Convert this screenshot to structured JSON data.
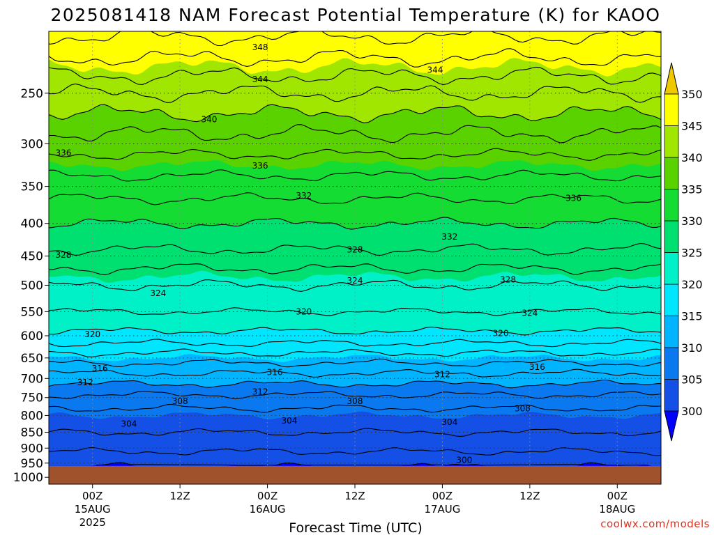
{
  "chart_data": {
    "type": "contour",
    "title": "2025081418 NAM Forecast Potential Temperature (K) for KAOO",
    "xlabel": "Forecast Time (UTC)",
    "ylabel": "",
    "credit": "coolwx.com/models",
    "y_axis": {
      "scale": "log-pressure",
      "reversed": true,
      "ticks": [
        250,
        300,
        350,
        400,
        450,
        500,
        550,
        600,
        650,
        700,
        750,
        800,
        850,
        900,
        950,
        1000
      ],
      "ylim": [
        200,
        1025
      ]
    },
    "x_axis": {
      "start": "2025-08-14T18",
      "end": "2025-08-18T06",
      "ticks": [
        {
          "time": "2025-08-15T00",
          "l1": "00Z",
          "l2": "15AUG",
          "l3": "2025"
        },
        {
          "time": "2025-08-15T12",
          "l1": "12Z",
          "l2": "",
          "l3": ""
        },
        {
          "time": "2025-08-16T00",
          "l1": "00Z",
          "l2": "16AUG",
          "l3": ""
        },
        {
          "time": "2025-08-16T12",
          "l1": "12Z",
          "l2": "",
          "l3": ""
        },
        {
          "time": "2025-08-17T00",
          "l1": "00Z",
          "l2": "17AUG",
          "l3": ""
        },
        {
          "time": "2025-08-17T12",
          "l1": "12Z",
          "l2": "",
          "l3": ""
        },
        {
          "time": "2025-08-18T00",
          "l1": "00Z",
          "l2": "18AUG",
          "l3": ""
        }
      ]
    },
    "surface_pressure": 960,
    "colorbar": {
      "levels": [
        300,
        305,
        310,
        315,
        320,
        325,
        330,
        335,
        340,
        345,
        350
      ],
      "labels": [
        "300",
        "305",
        "310",
        "315",
        "320",
        "325",
        "330",
        "335",
        "340",
        "345",
        "350"
      ],
      "colors": [
        "#0000ff",
        "#1450e6",
        "#0a78ee",
        "#00b4ff",
        "#00e6ff",
        "#00f0c8",
        "#00e070",
        "#14dc32",
        "#5ad200",
        "#a0e600",
        "#ffff00",
        "#f0c800"
      ]
    },
    "contour_interval": 2,
    "bands": [
      {
        "pressure": 945,
        "theta": 300.5
      },
      {
        "pressure": 900,
        "theta": 302.5
      },
      {
        "pressure": 850,
        "theta": 304.0
      },
      {
        "pressure": 800,
        "theta": 305.0
      },
      {
        "pressure": 750,
        "theta": 307.5
      },
      {
        "pressure": 700,
        "theta": 311.0
      },
      {
        "pressure": 650,
        "theta": 315.0
      },
      {
        "pressure": 600,
        "theta": 319.5
      },
      {
        "pressure": 550,
        "theta": 322.0
      },
      {
        "pressure": 500,
        "theta": 324.0
      },
      {
        "pressure": 450,
        "theta": 327.5
      },
      {
        "pressure": 400,
        "theta": 330.0
      },
      {
        "pressure": 350,
        "theta": 333.0
      },
      {
        "pressure": 300,
        "theta": 337.0
      },
      {
        "pressure": 250,
        "theta": 342.0
      },
      {
        "pressure": 210,
        "theta": 347.5
      }
    ],
    "contour_labels": [
      {
        "value": "348",
        "time": "2025-08-15T23",
        "pressure": 212
      },
      {
        "value": "344",
        "time": "2025-08-15T23",
        "pressure": 238
      },
      {
        "value": "344",
        "time": "2025-08-16T23",
        "pressure": 230
      },
      {
        "value": "340",
        "time": "2025-08-15T16",
        "pressure": 275
      },
      {
        "value": "336",
        "time": "2025-08-14T20",
        "pressure": 310
      },
      {
        "value": "336",
        "time": "2025-08-15T23",
        "pressure": 325
      },
      {
        "value": "336",
        "time": "2025-08-17T18",
        "pressure": 365
      },
      {
        "value": "332",
        "time": "2025-08-16T05",
        "pressure": 362
      },
      {
        "value": "332",
        "time": "2025-08-17T01",
        "pressure": 420
      },
      {
        "value": "328",
        "time": "2025-08-14T20",
        "pressure": 448
      },
      {
        "value": "328",
        "time": "2025-08-16T12",
        "pressure": 440
      },
      {
        "value": "328",
        "time": "2025-08-17T09",
        "pressure": 490
      },
      {
        "value": "324",
        "time": "2025-08-15T09",
        "pressure": 515
      },
      {
        "value": "324",
        "time": "2025-08-16T12",
        "pressure": 492
      },
      {
        "value": "324",
        "time": "2025-08-17T12",
        "pressure": 553
      },
      {
        "value": "320",
        "time": "2025-08-16T05",
        "pressure": 550
      },
      {
        "value": "320",
        "time": "2025-08-15T00",
        "pressure": 597
      },
      {
        "value": "320",
        "time": "2025-08-17T08",
        "pressure": 595
      },
      {
        "value": "316",
        "time": "2025-08-15T01",
        "pressure": 675
      },
      {
        "value": "316",
        "time": "2025-08-16T01",
        "pressure": 685
      },
      {
        "value": "316",
        "time": "2025-08-17T13",
        "pressure": 672
      },
      {
        "value": "312",
        "time": "2025-08-14T23",
        "pressure": 710
      },
      {
        "value": "312",
        "time": "2025-08-15T23",
        "pressure": 735
      },
      {
        "value": "312",
        "time": "2025-08-17T00",
        "pressure": 690
      },
      {
        "value": "308",
        "time": "2025-08-15T12",
        "pressure": 760
      },
      {
        "value": "308",
        "time": "2025-08-16T12",
        "pressure": 760
      },
      {
        "value": "308",
        "time": "2025-08-17T11",
        "pressure": 780
      },
      {
        "value": "304",
        "time": "2025-08-15T05",
        "pressure": 825
      },
      {
        "value": "304",
        "time": "2025-08-16T03",
        "pressure": 815
      },
      {
        "value": "304",
        "time": "2025-08-17T01",
        "pressure": 820
      },
      {
        "value": "300",
        "time": "2025-08-17T03",
        "pressure": 940
      }
    ]
  }
}
